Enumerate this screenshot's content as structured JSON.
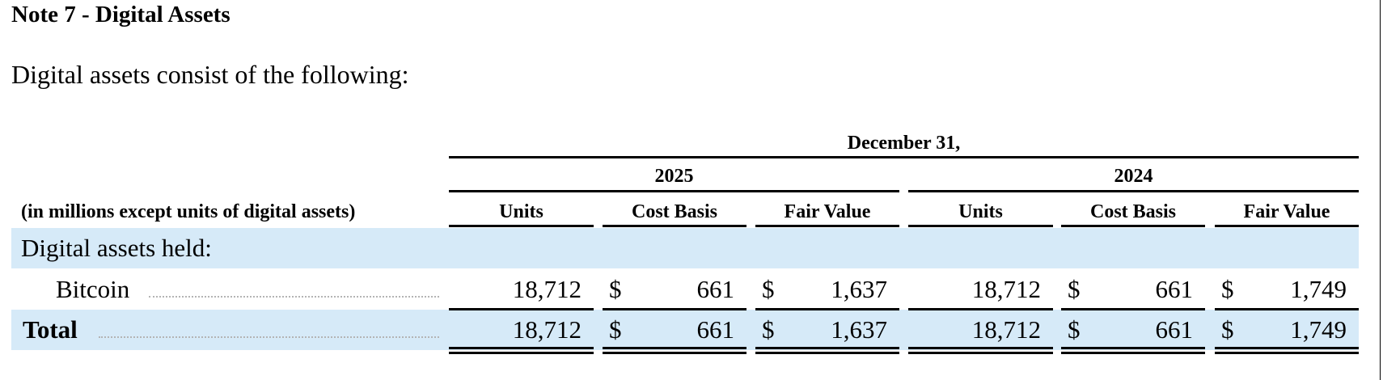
{
  "document": {
    "heading": "Note 7 - Digital Assets",
    "intro": "Digital assets consist of the following:"
  },
  "table": {
    "period_header": "December 31,",
    "years": [
      "2025",
      "2024"
    ],
    "unit_label": "(in millions except units of digital assets)",
    "columns": [
      "Units",
      "Cost Basis",
      "Fair Value",
      "Units",
      "Cost Basis",
      "Fair Value"
    ],
    "currency_symbol": "$",
    "section_label": "Digital assets held:",
    "rows": [
      {
        "label": "Bitcoin",
        "values": [
          "18,712",
          "661",
          "1,637",
          "18,712",
          "661",
          "1,749"
        ]
      },
      {
        "label": "Total",
        "values": [
          "18,712",
          "661",
          "1,637",
          "18,712",
          "661",
          "1,749"
        ]
      }
    ],
    "band_color": "#d6eaf8"
  }
}
